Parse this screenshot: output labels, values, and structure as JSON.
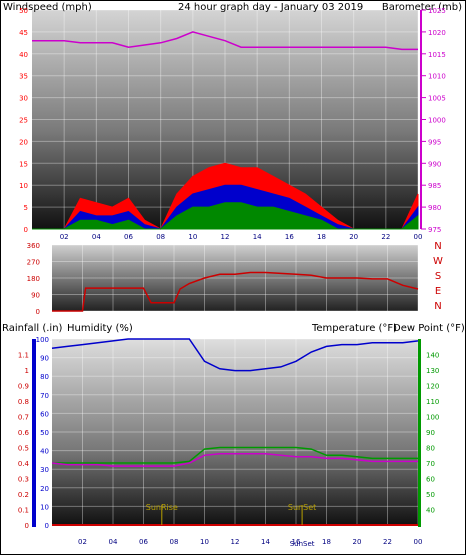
{
  "colors": {
    "wind_red": "#ff0000",
    "wind_blue": "#0000cc",
    "wind_green": "#008800",
    "baro_magenta": "#cc00cc",
    "title_yellow": "#d4c400",
    "dir_red": "#cc0000",
    "rain_red": "#cc0000",
    "humidity_blue": "#0000cc",
    "temp_green": "#009900",
    "dew_magenta": "#cc00cc",
    "sun_yellow": "#b8a000"
  },
  "hour_ticks": [
    "02",
    "04",
    "06",
    "08",
    "10",
    "12",
    "14",
    "16",
    "18",
    "20",
    "22",
    "00"
  ],
  "chart_data": [
    {
      "type": "line",
      "title": "24 hour graph day - January 03 2019",
      "left_axis_title": "Windspeed (mph)",
      "right_axis_title": "Barometer (mb)",
      "left_ticks": [
        "0",
        "5",
        "10",
        "15",
        "20",
        "25",
        "30",
        "35",
        "40",
        "45",
        "50"
      ],
      "right_ticks": [
        "975",
        "980",
        "985",
        "990",
        "995",
        "1000",
        "1005",
        "1010",
        "1015",
        "1020",
        "1025"
      ],
      "ylim": [
        0,
        50
      ],
      "y2lim": [
        975,
        1025
      ],
      "x_hours": [
        0,
        1,
        2,
        3,
        4,
        5,
        6,
        7,
        8,
        9,
        10,
        11,
        12,
        13,
        14,
        15,
        16,
        17,
        18,
        19,
        20,
        21,
        22,
        23,
        24
      ],
      "series": [
        {
          "key": "gust",
          "values": [
            0,
            0,
            0,
            7,
            6,
            5,
            7,
            2,
            0,
            8,
            12,
            14,
            15,
            14,
            14,
            12,
            10,
            8,
            5,
            2,
            0,
            0,
            0,
            0,
            8
          ]
        },
        {
          "key": "avg",
          "values": [
            0,
            0,
            0,
            4,
            3,
            3,
            4,
            1,
            0,
            5,
            8,
            9,
            10,
            10,
            9,
            8,
            7,
            5,
            3,
            1,
            0,
            0,
            0,
            0,
            5
          ]
        },
        {
          "key": "low",
          "values": [
            0,
            0,
            0,
            2,
            2,
            1,
            2,
            0,
            0,
            3,
            5,
            5,
            6,
            6,
            5,
            5,
            4,
            3,
            2,
            0,
            0,
            0,
            0,
            0,
            3
          ]
        },
        {
          "key": "barometer",
          "values": [
            1018,
            1018,
            1018,
            1017.5,
            1017.5,
            1017.5,
            1016.5,
            1017,
            1017.5,
            1018.5,
            1020,
            1019,
            1018,
            1016.5,
            1016.5,
            1016.5,
            1016.5,
            1016.5,
            1016.5,
            1016.5,
            1016.5,
            1016.5,
            1016.5,
            1016,
            1016
          ]
        }
      ]
    },
    {
      "type": "line",
      "left_ticks": [
        "0",
        "90",
        "180",
        "270",
        "360"
      ],
      "right_labels": [
        "N",
        "W",
        "S",
        "E",
        "N"
      ],
      "ylim": [
        0,
        360
      ],
      "x_hours": [
        0,
        1,
        2,
        2.2,
        3,
        4,
        5,
        6,
        6.5,
        7,
        8,
        8.4,
        9,
        10,
        11,
        12,
        13,
        14,
        15,
        16,
        17,
        18,
        19,
        20,
        21,
        22,
        23,
        24
      ],
      "series": [
        {
          "key": "direction",
          "values": [
            0,
            0,
            0,
            125,
            125,
            125,
            125,
            125,
            45,
            45,
            45,
            120,
            150,
            180,
            200,
            200,
            210,
            210,
            205,
            200,
            195,
            180,
            180,
            180,
            175,
            175,
            140,
            120
          ]
        }
      ]
    },
    {
      "type": "line",
      "left_axis_title_1": "Rainfall (.in)",
      "left_axis_title_2": "Humidity (%)",
      "right_axis_title_1": "Temperature (°F)",
      "right_axis_title_2": "Dew Point (°F)",
      "rain_ticks": [
        "0",
        "0.1",
        "0.2",
        "0.3",
        "0.4",
        "0.5",
        "0.6",
        "0.7",
        "0.8",
        "0.9",
        "1",
        "1.1"
      ],
      "humidity_ticks": [
        "0",
        "10",
        "20",
        "30",
        "40",
        "50",
        "60",
        "70",
        "80",
        "90",
        "100"
      ],
      "temp_ticks": [
        "40",
        "50",
        "60",
        "70",
        "80",
        "90",
        "100",
        "110",
        "120",
        "130",
        "140"
      ],
      "ylim_rain": [
        0,
        1.2
      ],
      "ylim_humidity": [
        0,
        100
      ],
      "ylim_temp": [
        30,
        150
      ],
      "x_hours": [
        0,
        1,
        2,
        3,
        4,
        5,
        6,
        7,
        8,
        9,
        10,
        11,
        12,
        13,
        14,
        15,
        16,
        17,
        18,
        19,
        20,
        21,
        22,
        23,
        24
      ],
      "series": [
        {
          "key": "humidity",
          "values": [
            95,
            96,
            97,
            98,
            99,
            100,
            100,
            100,
            100,
            100,
            88,
            84,
            83,
            83,
            84,
            85,
            88,
            93,
            96,
            97,
            97,
            98,
            98,
            98,
            99
          ]
        },
        {
          "key": "temperature",
          "values": [
            70,
            70,
            70,
            70,
            70,
            70,
            70,
            70,
            70,
            71,
            79,
            80,
            80,
            80,
            80,
            80,
            80,
            79,
            75,
            75,
            74,
            73,
            73,
            73,
            73
          ]
        },
        {
          "key": "dewpoint",
          "values": [
            70,
            69,
            69,
            69,
            68,
            68,
            68,
            68,
            68,
            70,
            75,
            76,
            76,
            76,
            76,
            75,
            74,
            74,
            73,
            73,
            72,
            71,
            71,
            71,
            71
          ]
        },
        {
          "key": "rainfall",
          "values": [
            0,
            0,
            0,
            0,
            0,
            0,
            0,
            0,
            0,
            0,
            0,
            0,
            0,
            0,
            0,
            0,
            0,
            0,
            0,
            0,
            0,
            0,
            0,
            0,
            0
          ]
        }
      ],
      "sunrise_label": "SunRise",
      "sunset_label": "SunSet",
      "sunrise_hour": 7.2,
      "sunset_hour": 16.4
    }
  ]
}
